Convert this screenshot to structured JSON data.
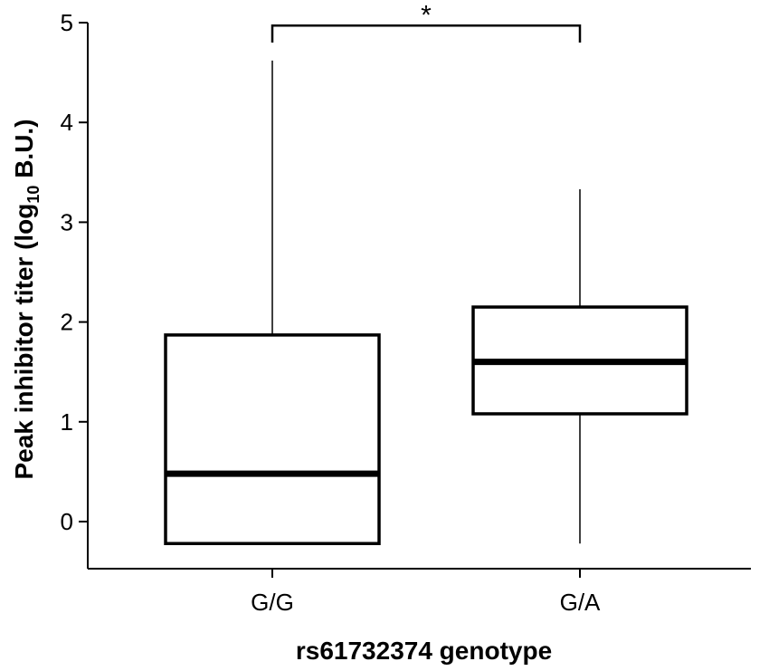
{
  "chart_data": {
    "type": "box",
    "xlabel": "rs61732374 genotype",
    "ylabel": {
      "prefix": "Peak inhibitor titer (log",
      "subscript": "10",
      "suffix": " B.U.)"
    },
    "ylim": [
      -0.5,
      5
    ],
    "yticks": [
      "0",
      "1",
      "2",
      "3",
      "4",
      "5"
    ],
    "categories": [
      "G/G",
      "G/A"
    ],
    "boxes": [
      {
        "category": "G/G",
        "whisker_low": -0.22,
        "q1": -0.22,
        "median": 0.48,
        "q3": 1.87,
        "whisker_high": 4.62
      },
      {
        "category": "G/A",
        "whisker_low": -0.22,
        "q1": 1.08,
        "median": 1.6,
        "q3": 2.15,
        "whisker_high": 3.33
      }
    ],
    "significance": {
      "label": "*",
      "between": [
        "G/G",
        "G/A"
      ],
      "y": 4.97,
      "tick_down_to": 4.8
    },
    "grid": false,
    "legend": "none"
  }
}
